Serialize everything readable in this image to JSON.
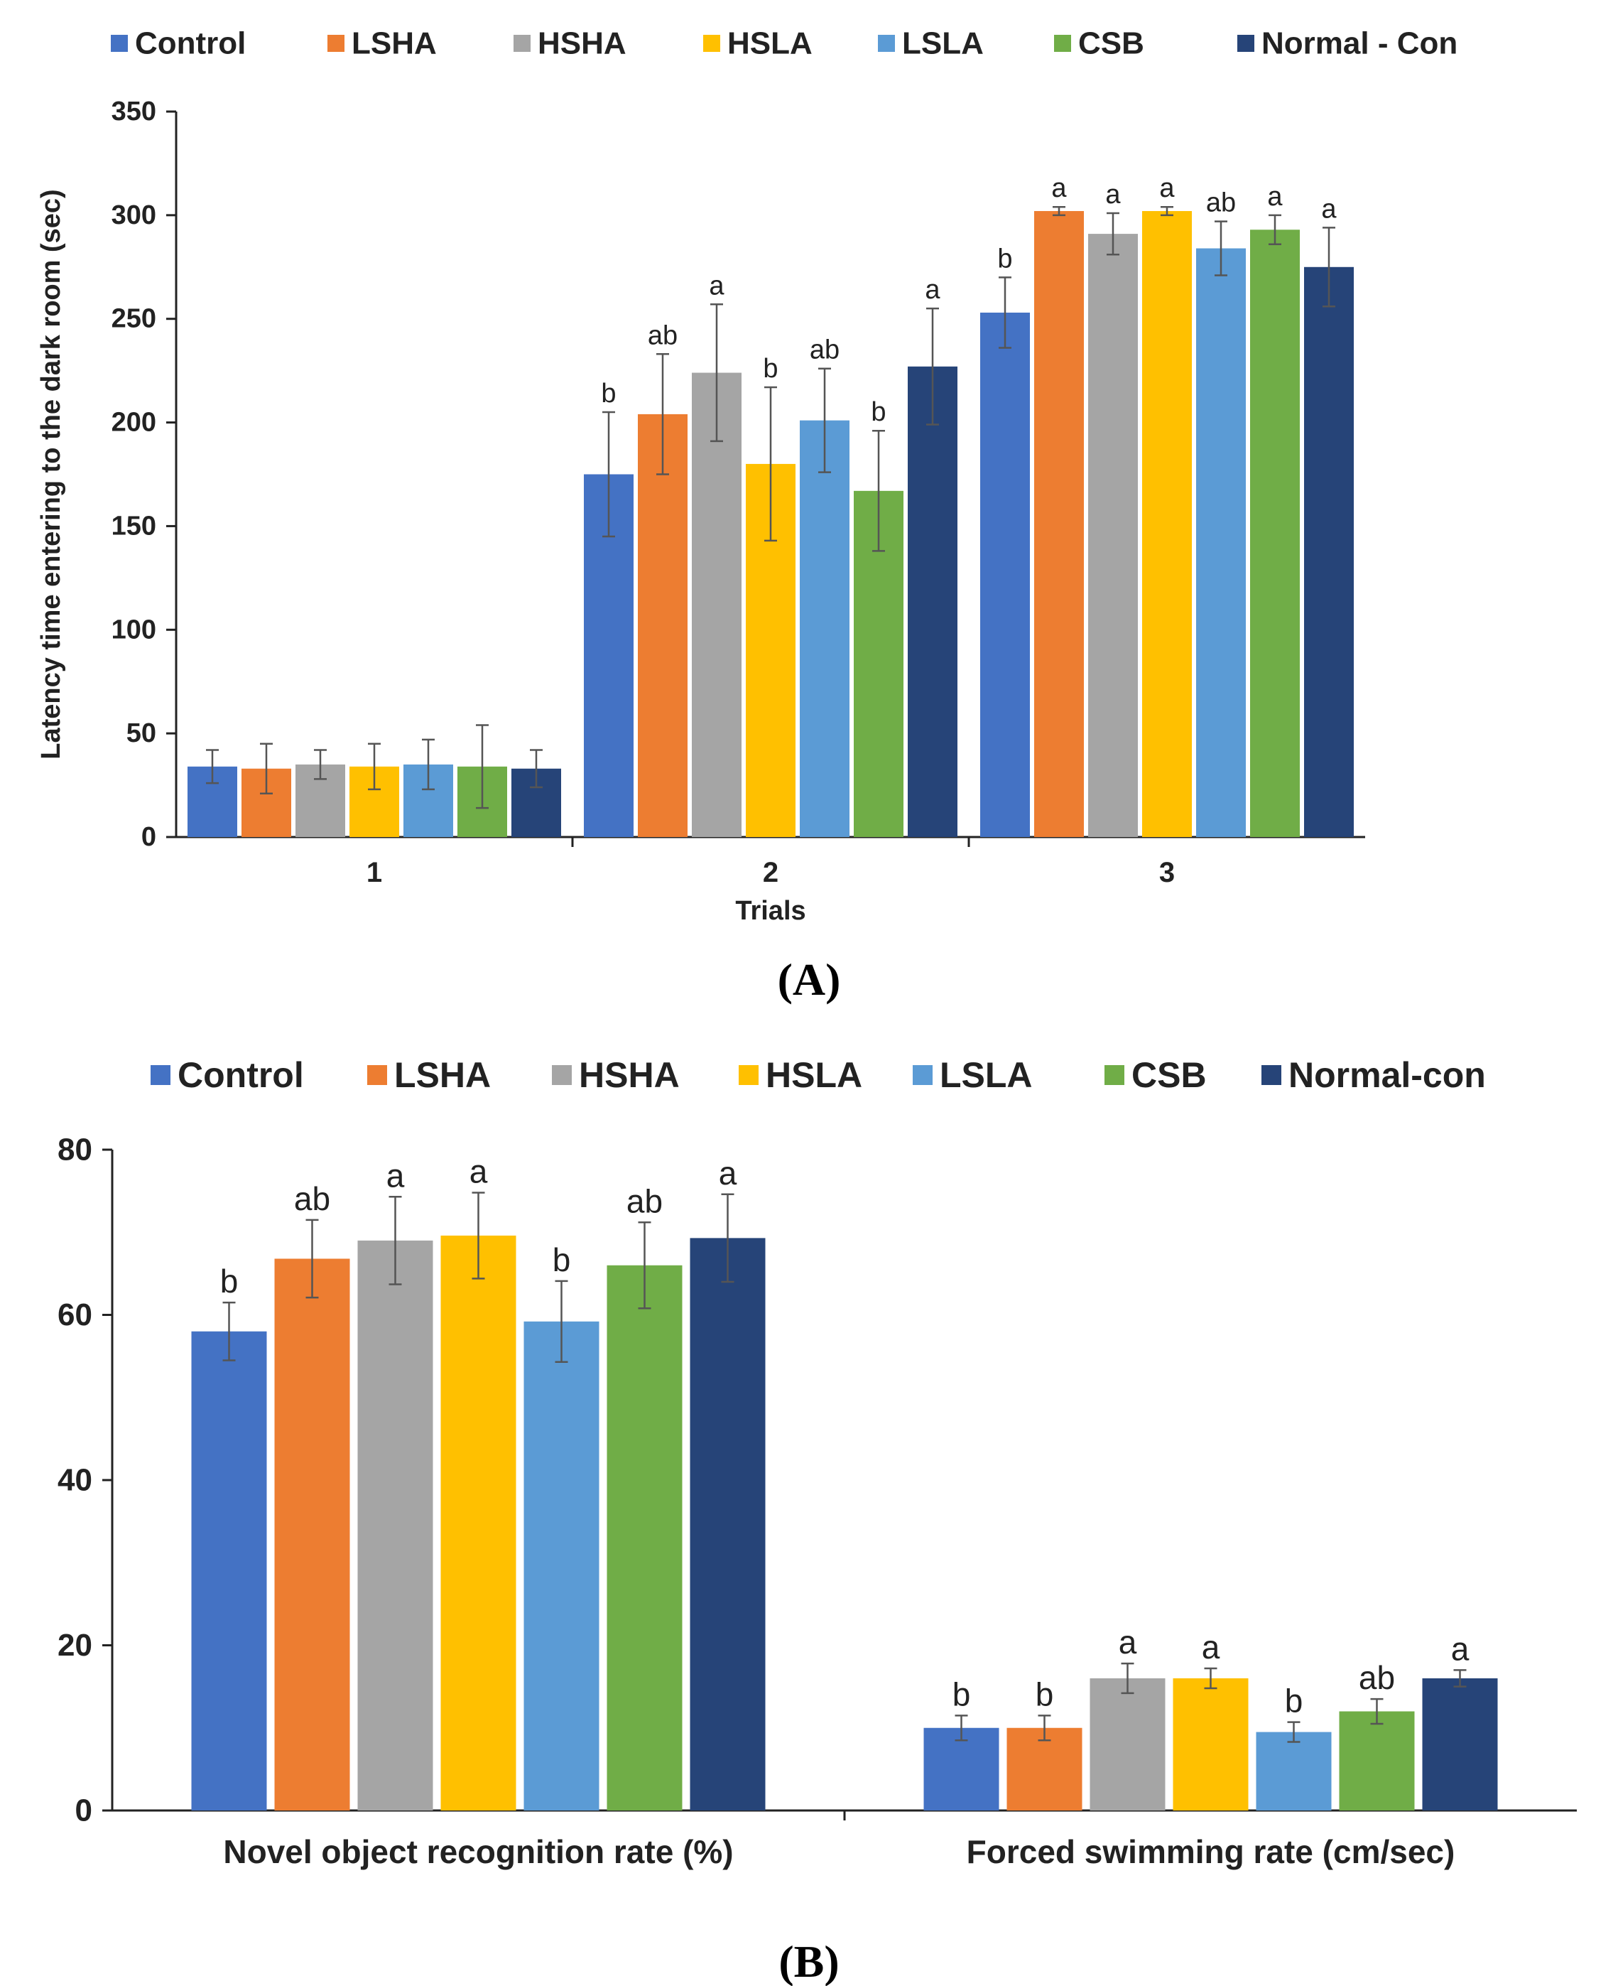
{
  "panels": {
    "a": {
      "label": "(A)"
    },
    "b": {
      "label": "(B)"
    }
  },
  "chart_data": [
    {
      "type": "bar",
      "title": "",
      "panel_label": "(A)",
      "xlabel": "Trials",
      "ylabel": "Latency time entering to the dark room (sec)",
      "ylim": [
        0,
        350
      ],
      "yticks": [
        0,
        50,
        100,
        150,
        200,
        250,
        300,
        350
      ],
      "grid": false,
      "legend_position": "top",
      "categories": [
        "1",
        "2",
        "3"
      ],
      "series": [
        {
          "name": "Control",
          "color": "#4472C4",
          "values": [
            34,
            175,
            253
          ],
          "errors": [
            8,
            30,
            17
          ],
          "sig": [
            "",
            "b",
            "b"
          ]
        },
        {
          "name": "LSHA",
          "color": "#ED7D31",
          "values": [
            33,
            204,
            302
          ],
          "errors": [
            12,
            29,
            2
          ],
          "sig": [
            "",
            "ab",
            "a"
          ]
        },
        {
          "name": "HSHA",
          "color": "#A5A5A5",
          "values": [
            35,
            224,
            291
          ],
          "errors": [
            7,
            33,
            10
          ],
          "sig": [
            "",
            "a",
            "a"
          ]
        },
        {
          "name": "HSLA",
          "color": "#FFC000",
          "values": [
            34,
            180,
            302
          ],
          "errors": [
            11,
            37,
            2
          ],
          "sig": [
            "",
            "b",
            "a"
          ]
        },
        {
          "name": "LSLA",
          "color": "#5B9BD5",
          "values": [
            35,
            201,
            284
          ],
          "errors": [
            12,
            25,
            13
          ],
          "sig": [
            "",
            "ab",
            "ab"
          ]
        },
        {
          "name": "CSB",
          "color": "#70AD47",
          "values": [
            34,
            167,
            293
          ],
          "errors": [
            20,
            29,
            7
          ],
          "sig": [
            "",
            "b",
            "a"
          ]
        },
        {
          "name": "Normal - Con",
          "color": "#264478",
          "values": [
            33,
            227,
            275
          ],
          "errors": [
            9,
            28,
            19
          ],
          "sig": [
            "",
            "a",
            "a"
          ]
        }
      ]
    },
    {
      "type": "bar",
      "title": "",
      "panel_label": "(B)",
      "xlabel": "",
      "ylabel": "",
      "ylim": [
        0,
        80
      ],
      "yticks": [
        0,
        20,
        40,
        60,
        80
      ],
      "grid": false,
      "legend_position": "top",
      "categories": [
        "Novel object recognition rate (%)",
        "Forced swimming rate (cm/sec)"
      ],
      "series": [
        {
          "name": "Control",
          "color": "#4472C4",
          "values": [
            58,
            10
          ],
          "errors": [
            3.5,
            1.5
          ],
          "sig": [
            "b",
            "b"
          ]
        },
        {
          "name": "LSHA",
          "color": "#ED7D31",
          "values": [
            66.8,
            10
          ],
          "errors": [
            4.7,
            1.5
          ],
          "sig": [
            "ab",
            "b"
          ]
        },
        {
          "name": "HSHA",
          "color": "#A5A5A5",
          "values": [
            69,
            16
          ],
          "errors": [
            5.3,
            1.8
          ],
          "sig": [
            "a",
            "a"
          ]
        },
        {
          "name": "HSLA",
          "color": "#FFC000",
          "values": [
            69.6,
            16
          ],
          "errors": [
            5.2,
            1.2
          ],
          "sig": [
            "a",
            "a"
          ]
        },
        {
          "name": "LSLA",
          "color": "#5B9BD5",
          "values": [
            59.2,
            9.5
          ],
          "errors": [
            4.9,
            1.2
          ],
          "sig": [
            "b",
            "b"
          ]
        },
        {
          "name": "CSB",
          "color": "#70AD47",
          "values": [
            66,
            12
          ],
          "errors": [
            5.2,
            1.5
          ],
          "sig": [
            "ab",
            "ab"
          ]
        },
        {
          "name": "Normal-con",
          "color": "#264478",
          "values": [
            69.3,
            16
          ],
          "errors": [
            5.3,
            1.0
          ],
          "sig": [
            "a",
            "a"
          ]
        }
      ]
    }
  ]
}
